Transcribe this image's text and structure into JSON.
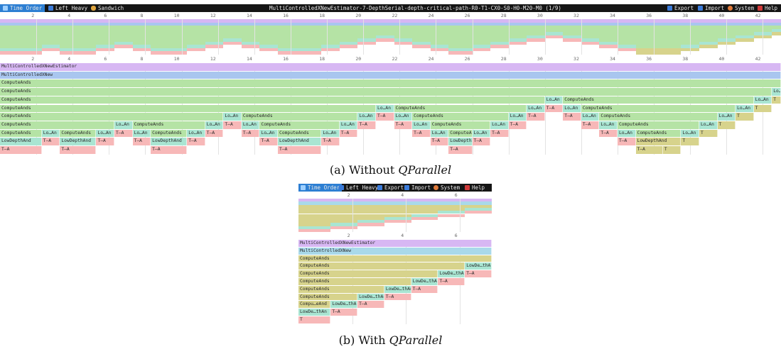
{
  "panel_a": {
    "toolbar": {
      "time_order": "Time Order",
      "left_heavy": "Left Heavy",
      "sandwich": "Sandwich",
      "title": "MultiControlledXNewEstimator-7-DepthSerial-depth-critical-path-R0-T1-CX0-S0-H0-M20-M0",
      "counter": "(1/9)",
      "export": "Export",
      "import": "Import",
      "system": "System",
      "help": "Help"
    },
    "ticks": [
      "2",
      "4",
      "6",
      "8",
      "10",
      "12",
      "14",
      "16",
      "18",
      "20",
      "22",
      "24",
      "26",
      "28",
      "30",
      "32",
      "34",
      "36",
      "38",
      "40",
      "42"
    ],
    "frames": [
      {
        "label": "MultiControlledXNewEstimator",
        "row": 0,
        "start": 0,
        "end": 43,
        "color": "#d7b7f3"
      },
      {
        "label": "MultiControlledXNew",
        "row": 1,
        "start": 0,
        "end": 43,
        "color": "#a9c6ef"
      },
      {
        "label": "ComputeAnds",
        "row": 2,
        "start": 0,
        "end": 43,
        "color": "#b5e3a5"
      },
      {
        "label": "ComputeAnds",
        "row": 3,
        "start": 0,
        "end": 42.5,
        "color": "#b5e3a5"
      },
      {
        "label": "Lo…An",
        "row": 3,
        "start": 42.5,
        "end": 43,
        "color": "#a9e5d2"
      },
      {
        "label": "ComputeAnds",
        "row": 4,
        "start": 0,
        "end": 30,
        "color": "#b5e3a5"
      },
      {
        "label": "Lo…An",
        "row": 4,
        "start": 30,
        "end": 31,
        "color": "#a9e5d2"
      },
      {
        "label": "ComputeAnds",
        "row": 4,
        "start": 31,
        "end": 41.5,
        "color": "#b5e3a5"
      },
      {
        "label": "Lo…An",
        "row": 4,
        "start": 41.5,
        "end": 42.5,
        "color": "#a9e5d2"
      },
      {
        "label": "T",
        "row": 4,
        "start": 42.5,
        "end": 43,
        "color": "#d7d38c"
      },
      {
        "label": "ComputeAnds",
        "row": 5,
        "start": 0,
        "end": 20.7,
        "color": "#b5e3a5"
      },
      {
        "label": "Lo…An",
        "row": 5,
        "start": 20.7,
        "end": 21.7,
        "color": "#a9e5d2"
      },
      {
        "label": "ComputeAnds",
        "row": 5,
        "start": 21.7,
        "end": 29,
        "color": "#b5e3a5"
      },
      {
        "label": "Lo…An",
        "row": 5,
        "start": 29,
        "end": 30,
        "color": "#a9e5d2"
      },
      {
        "label": "T–A",
        "row": 5,
        "start": 30,
        "end": 31,
        "color": "#f7b8b8"
      },
      {
        "label": "Lo…An",
        "row": 5,
        "start": 31,
        "end": 32,
        "color": "#a9e5d2"
      },
      {
        "label": "ComputeAnds",
        "row": 5,
        "start": 32,
        "end": 40.5,
        "color": "#b5e3a5"
      },
      {
        "label": "Lo…An",
        "row": 5,
        "start": 40.5,
        "end": 41.5,
        "color": "#a9e5d2"
      },
      {
        "label": "T",
        "row": 5,
        "start": 41.5,
        "end": 42.5,
        "color": "#d7d38c"
      },
      {
        "label": "ComputeAnds",
        "row": 6,
        "start": 0,
        "end": 12.3,
        "color": "#b5e3a5"
      },
      {
        "label": "Lo…An",
        "row": 6,
        "start": 12.3,
        "end": 13.3,
        "color": "#a9e5d2"
      },
      {
        "label": "ComputeAnds",
        "row": 6,
        "start": 13.3,
        "end": 19.7,
        "color": "#b5e3a5"
      },
      {
        "label": "Lo…An",
        "row": 6,
        "start": 19.7,
        "end": 20.7,
        "color": "#a9e5d2"
      },
      {
        "label": "T–A",
        "row": 6,
        "start": 20.7,
        "end": 21.7,
        "color": "#f7b8b8"
      },
      {
        "label": "Lo…An",
        "row": 6,
        "start": 21.7,
        "end": 22.7,
        "color": "#a9e5d2"
      },
      {
        "label": "ComputeAnds",
        "row": 6,
        "start": 22.7,
        "end": 28,
        "color": "#b5e3a5"
      },
      {
        "label": "Lo…An",
        "row": 6,
        "start": 28,
        "end": 29,
        "color": "#a9e5d2"
      },
      {
        "label": "T–A",
        "row": 6,
        "start": 29,
        "end": 30,
        "color": "#f7b8b8"
      },
      {
        "label": "T–A",
        "row": 6,
        "start": 31,
        "end": 32,
        "color": "#f7b8b8"
      },
      {
        "label": "Lo…An",
        "row": 6,
        "start": 32,
        "end": 33,
        "color": "#a9e5d2"
      },
      {
        "label": "ComputeAnds",
        "row": 6,
        "start": 33,
        "end": 39.5,
        "color": "#b5e3a5"
      },
      {
        "label": "Lo…An",
        "row": 6,
        "start": 39.5,
        "end": 40.5,
        "color": "#a9e5d2"
      },
      {
        "label": "T",
        "row": 6,
        "start": 40.5,
        "end": 41.5,
        "color": "#d7d38c"
      },
      {
        "label": "ComputeAnds",
        "row": 7,
        "start": 0,
        "end": 6.3,
        "color": "#b5e3a5"
      },
      {
        "label": "Lo…An",
        "row": 7,
        "start": 6.3,
        "end": 7.3,
        "color": "#a9e5d2"
      },
      {
        "label": "ComputeAnds",
        "row": 7,
        "start": 7.3,
        "end": 11.3,
        "color": "#b5e3a5"
      },
      {
        "label": "Lo…An",
        "row": 7,
        "start": 11.3,
        "end": 12.3,
        "color": "#a9e5d2"
      },
      {
        "label": "T–A",
        "row": 7,
        "start": 12.3,
        "end": 13.3,
        "color": "#f7b8b8"
      },
      {
        "label": "Lo…An",
        "row": 7,
        "start": 13.3,
        "end": 14.3,
        "color": "#a9e5d2"
      },
      {
        "label": "ComputeAnds",
        "row": 7,
        "start": 14.3,
        "end": 18.7,
        "color": "#b5e3a5"
      },
      {
        "label": "Lo…An",
        "row": 7,
        "start": 18.7,
        "end": 19.7,
        "color": "#a9e5d2"
      },
      {
        "label": "T–A",
        "row": 7,
        "start": 19.7,
        "end": 20.7,
        "color": "#f7b8b8"
      },
      {
        "label": "T–A",
        "row": 7,
        "start": 21.7,
        "end": 22.7,
        "color": "#f7b8b8"
      },
      {
        "label": "Lo…An",
        "row": 7,
        "start": 22.7,
        "end": 23.7,
        "color": "#a9e5d2"
      },
      {
        "label": "ComputeAnds",
        "row": 7,
        "start": 23.7,
        "end": 27,
        "color": "#b5e3a5"
      },
      {
        "label": "Lo…An",
        "row": 7,
        "start": 27,
        "end": 28,
        "color": "#a9e5d2"
      },
      {
        "label": "T–A",
        "row": 7,
        "start": 28,
        "end": 29,
        "color": "#f7b8b8"
      },
      {
        "label": "T–A",
        "row": 7,
        "start": 32,
        "end": 33,
        "color": "#f7b8b8"
      },
      {
        "label": "Lo…An",
        "row": 7,
        "start": 33,
        "end": 34,
        "color": "#a9e5d2"
      },
      {
        "label": "ComputeAnds",
        "row": 7,
        "start": 34,
        "end": 38.5,
        "color": "#b5e3a5"
      },
      {
        "label": "Lo…An",
        "row": 7,
        "start": 38.5,
        "end": 39.5,
        "color": "#a9e5d2"
      },
      {
        "label": "T",
        "row": 7,
        "start": 39.5,
        "end": 40.5,
        "color": "#d7d38c"
      },
      {
        "label": "ComputeAnds",
        "row": 8,
        "start": 0,
        "end": 2.3,
        "color": "#b5e3a5"
      },
      {
        "label": "Lo…An",
        "row": 8,
        "start": 2.3,
        "end": 3.3,
        "color": "#a9e5d2"
      },
      {
        "label": "ComputeAnds",
        "row": 8,
        "start": 3.3,
        "end": 5.3,
        "color": "#b5e3a5"
      },
      {
        "label": "Lo…An",
        "row": 8,
        "start": 5.3,
        "end": 6.3,
        "color": "#a9e5d2"
      },
      {
        "label": "T–A",
        "row": 8,
        "start": 6.3,
        "end": 7.3,
        "color": "#f7b8b8"
      },
      {
        "label": "Lo…An",
        "row": 8,
        "start": 7.3,
        "end": 8.3,
        "color": "#a9e5d2"
      },
      {
        "label": "ComputeAnds",
        "row": 8,
        "start": 8.3,
        "end": 10.3,
        "color": "#b5e3a5"
      },
      {
        "label": "Lo…An",
        "row": 8,
        "start": 10.3,
        "end": 11.3,
        "color": "#a9e5d2"
      },
      {
        "label": "T–A",
        "row": 8,
        "start": 11.3,
        "end": 12.3,
        "color": "#f7b8b8"
      },
      {
        "label": "T–A",
        "row": 8,
        "start": 13.3,
        "end": 14.3,
        "color": "#f7b8b8"
      },
      {
        "label": "Lo…An",
        "row": 8,
        "start": 14.3,
        "end": 15.3,
        "color": "#a9e5d2"
      },
      {
        "label": "ComputeAnds",
        "row": 8,
        "start": 15.3,
        "end": 17.7,
        "color": "#b5e3a5"
      },
      {
        "label": "Lo…An",
        "row": 8,
        "start": 17.7,
        "end": 18.7,
        "color": "#a9e5d2"
      },
      {
        "label": "T–A",
        "row": 8,
        "start": 18.7,
        "end": 19.7,
        "color": "#f7b8b8"
      },
      {
        "label": "T–A",
        "row": 8,
        "start": 22.7,
        "end": 23.7,
        "color": "#f7b8b8"
      },
      {
        "label": "Lo…An",
        "row": 8,
        "start": 23.7,
        "end": 24.7,
        "color": "#a9e5d2"
      },
      {
        "label": "ComputeAnds",
        "row": 8,
        "start": 24.7,
        "end": 26,
        "color": "#b5e3a5"
      },
      {
        "label": "Lo…An",
        "row": 8,
        "start": 26,
        "end": 27,
        "color": "#a9e5d2"
      },
      {
        "label": "T–A",
        "row": 8,
        "start": 27,
        "end": 28,
        "color": "#f7b8b8"
      },
      {
        "label": "T–A",
        "row": 8,
        "start": 33,
        "end": 34,
        "color": "#f7b8b8"
      },
      {
        "label": "Lo…An",
        "row": 8,
        "start": 34,
        "end": 35,
        "color": "#a9e5d2"
      },
      {
        "label": "ComputeAnds",
        "row": 8,
        "start": 35,
        "end": 37.5,
        "color": "#b5e3a5"
      },
      {
        "label": "Lo…An",
        "row": 8,
        "start": 37.5,
        "end": 38.5,
        "color": "#a9e5d2"
      },
      {
        "label": "T",
        "row": 8,
        "start": 38.5,
        "end": 39.5,
        "color": "#d7d38c"
      },
      {
        "label": "LowDepthAnd",
        "row": 9,
        "start": 0,
        "end": 2.3,
        "color": "#a9e5d2"
      },
      {
        "label": "T–A",
        "row": 9,
        "start": 2.3,
        "end": 3.3,
        "color": "#f7b8b8"
      },
      {
        "label": "LowDepthAnd",
        "row": 9,
        "start": 3.3,
        "end": 5.3,
        "color": "#a9e5d2"
      },
      {
        "label": "T–A",
        "row": 9,
        "start": 5.3,
        "end": 6.3,
        "color": "#f7b8b8"
      },
      {
        "label": "T–A",
        "row": 9,
        "start": 7.3,
        "end": 8.3,
        "color": "#f7b8b8"
      },
      {
        "label": "LowDepthAnd",
        "row": 9,
        "start": 8.3,
        "end": 10.3,
        "color": "#a9e5d2"
      },
      {
        "label": "T–A",
        "row": 9,
        "start": 10.3,
        "end": 11.3,
        "color": "#f7b8b8"
      },
      {
        "label": "T–A",
        "row": 9,
        "start": 14.3,
        "end": 15.3,
        "color": "#f7b8b8"
      },
      {
        "label": "LowDepthAnd",
        "row": 9,
        "start": 15.3,
        "end": 17.7,
        "color": "#a9e5d2"
      },
      {
        "label": "T–A",
        "row": 9,
        "start": 17.7,
        "end": 18.7,
        "color": "#f7b8b8"
      },
      {
        "label": "T–A",
        "row": 9,
        "start": 23.7,
        "end": 24.7,
        "color": "#f7b8b8"
      },
      {
        "label": "LowDepthAnd",
        "row": 9,
        "start": 24.7,
        "end": 26,
        "color": "#a9e5d2"
      },
      {
        "label": "T–A",
        "row": 9,
        "start": 26,
        "end": 27,
        "color": "#f7b8b8"
      },
      {
        "label": "T–A",
        "row": 9,
        "start": 34,
        "end": 35,
        "color": "#f7b8b8"
      },
      {
        "label": "LowDepthAnd",
        "row": 9,
        "start": 35,
        "end": 37.5,
        "color": "#d7d38c"
      },
      {
        "label": "T",
        "row": 9,
        "start": 37.5,
        "end": 38.5,
        "color": "#d7d38c"
      },
      {
        "label": "T–A",
        "row": 10,
        "start": 0,
        "end": 2.3,
        "color": "#f7b8b8"
      },
      {
        "label": "T–A",
        "row": 10,
        "start": 3.3,
        "end": 5.3,
        "color": "#f7b8b8"
      },
      {
        "label": "T–A",
        "row": 10,
        "start": 8.3,
        "end": 10.3,
        "color": "#f7b8b8"
      },
      {
        "label": "T–A",
        "row": 10,
        "start": 15.3,
        "end": 17.7,
        "color": "#f7b8b8"
      },
      {
        "label": "T–A",
        "row": 10,
        "start": 24.7,
        "end": 26,
        "color": "#f7b8b8"
      },
      {
        "label": "T–A",
        "row": 10,
        "start": 35,
        "end": 36.5,
        "color": "#d7d38c"
      },
      {
        "label": "T",
        "row": 10,
        "start": 36.5,
        "end": 37.5,
        "color": "#d7d38c"
      }
    ]
  },
  "panel_b": {
    "toolbar": {
      "time_order": "Time Order",
      "left_heavy": "Left Heavy",
      "export": "Export",
      "import": "Import",
      "system": "System",
      "help": "Help"
    },
    "ticks": [
      "2",
      "4",
      "6"
    ],
    "frames": [
      {
        "label": "MultiControlledXNewEstimator",
        "row": 0,
        "start": 0,
        "end": 7.2,
        "color": "#d7b7f3"
      },
      {
        "label": "MultiControlledXNew",
        "row": 1,
        "start": 0,
        "end": 7.2,
        "color": "#a9d9ea"
      },
      {
        "label": "ComputeAnds",
        "row": 2,
        "start": 0,
        "end": 7.2,
        "color": "#d7d38c"
      },
      {
        "label": "ComputeAnds",
        "row": 3,
        "start": 0,
        "end": 6.2,
        "color": "#d7d38c"
      },
      {
        "label": "LowDe…thAn",
        "row": 3,
        "start": 6.2,
        "end": 7.2,
        "color": "#a9e5d2"
      },
      {
        "label": "ComputeAnds",
        "row": 4,
        "start": 0,
        "end": 5.2,
        "color": "#d7d38c"
      },
      {
        "label": "LowDe…thAn",
        "row": 4,
        "start": 5.2,
        "end": 6.2,
        "color": "#a9e5d2"
      },
      {
        "label": "T–A",
        "row": 4,
        "start": 6.2,
        "end": 7.2,
        "color": "#f7b8b8"
      },
      {
        "label": "ComputeAnds",
        "row": 5,
        "start": 0,
        "end": 4.2,
        "color": "#d7d38c"
      },
      {
        "label": "LowDe…thAn",
        "row": 5,
        "start": 4.2,
        "end": 5.2,
        "color": "#a9e5d2"
      },
      {
        "label": "T–A",
        "row": 5,
        "start": 5.2,
        "end": 6.2,
        "color": "#f7b8b8"
      },
      {
        "label": "ComputeAnds",
        "row": 6,
        "start": 0,
        "end": 3.2,
        "color": "#d7d38c"
      },
      {
        "label": "LowDe…thAn",
        "row": 6,
        "start": 3.2,
        "end": 4.2,
        "color": "#a9e5d2"
      },
      {
        "label": "T–A",
        "row": 6,
        "start": 4.2,
        "end": 5.2,
        "color": "#f7b8b8"
      },
      {
        "label": "ComputeAnds",
        "row": 7,
        "start": 0,
        "end": 2.2,
        "color": "#d7d38c"
      },
      {
        "label": "LowDe…thAn",
        "row": 7,
        "start": 2.2,
        "end": 3.2,
        "color": "#a9e5d2"
      },
      {
        "label": "T–A",
        "row": 7,
        "start": 3.2,
        "end": 4.2,
        "color": "#f7b8b8"
      },
      {
        "label": "Compu…eAnd",
        "row": 8,
        "start": 0,
        "end": 1.2,
        "color": "#d7d38c"
      },
      {
        "label": "LowDe…thAn",
        "row": 8,
        "start": 1.2,
        "end": 2.2,
        "color": "#a9e5d2"
      },
      {
        "label": "T–A",
        "row": 8,
        "start": 2.2,
        "end": 3.2,
        "color": "#f7b8b8"
      },
      {
        "label": "LowDe…thAn",
        "row": 9,
        "start": 0,
        "end": 1.2,
        "color": "#a9e5d2"
      },
      {
        "label": "T–A",
        "row": 9,
        "start": 1.2,
        "end": 2.2,
        "color": "#f7b8b8"
      },
      {
        "label": "T",
        "row": 10,
        "start": 0,
        "end": 1.2,
        "color": "#f7b8b8"
      }
    ]
  },
  "captions": {
    "a_prefix": "(a) Without ",
    "a_name": "QParallel",
    "b_prefix": "(b) With ",
    "b_name": "QParallel"
  },
  "colors": {
    "toolbar_bg": "#151515",
    "active_tab": "#2d7fd3",
    "export_icon": "#3b7bd9",
    "import_icon": "#3b7bd9",
    "system_icon": "#e07a3a",
    "help_icon": "#d03a3a"
  }
}
